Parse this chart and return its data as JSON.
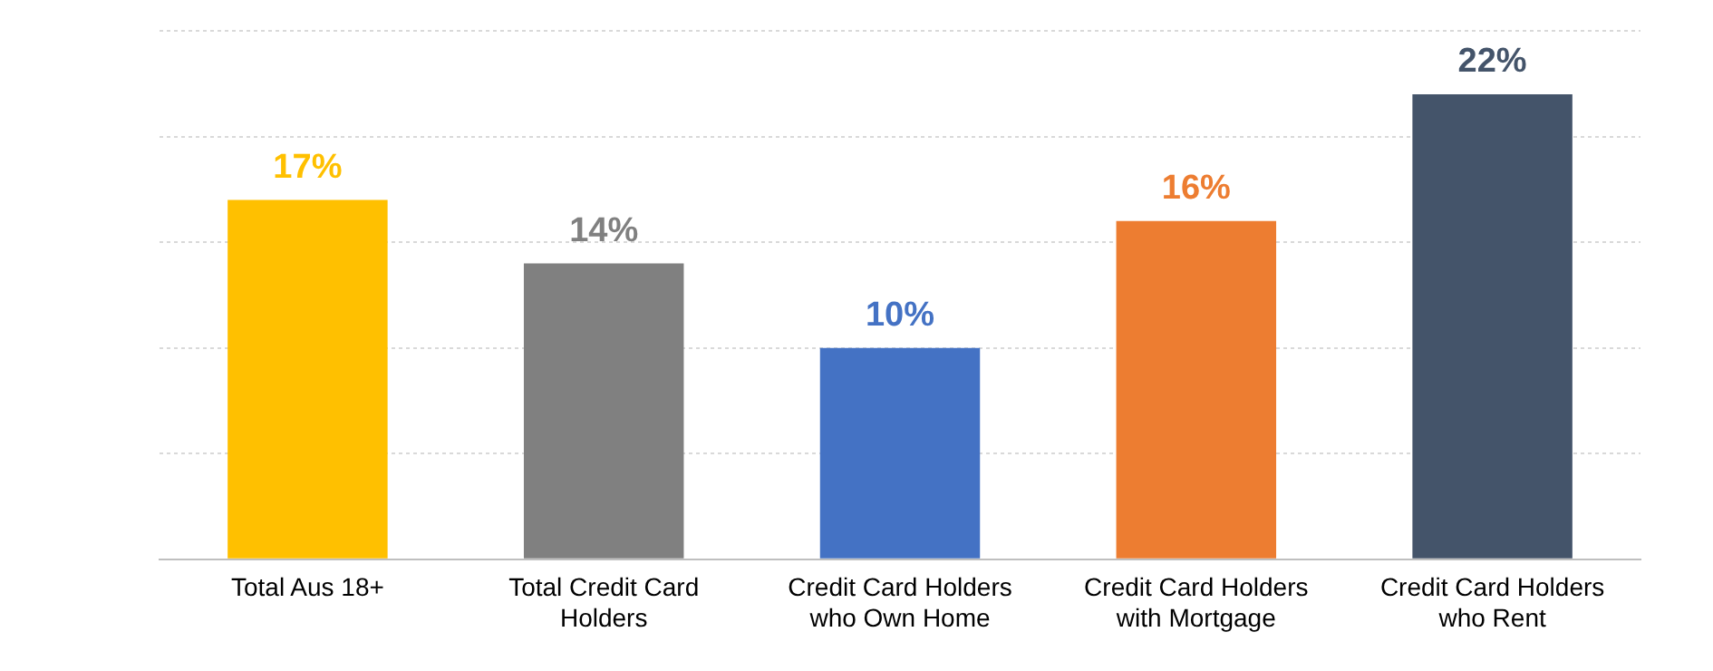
{
  "chart_data": {
    "type": "bar",
    "categories": [
      "Total Aus 18+",
      "Total Credit Card Holders",
      "Credit Card Holders who Own Home",
      "Credit Card Holders with Mortgage",
      "Credit Card Holders who Rent"
    ],
    "values": [
      17,
      14,
      10,
      16,
      22
    ],
    "colors": [
      "#ffc000",
      "#808080",
      "#4472c4",
      "#ed7d31",
      "#44546a"
    ],
    "value_labels": [
      "17%",
      "14%",
      "10%",
      "16%",
      "22%"
    ],
    "ylim": [
      0,
      25
    ],
    "yticks": [
      {
        "value": 0,
        "label": null
      },
      {
        "value": 5,
        "label": null
      },
      {
        "value": 10,
        "label": null
      },
      {
        "value": 15,
        "label": null
      },
      {
        "value": 20,
        "label": null
      },
      {
        "value": 25,
        "label": null
      }
    ],
    "tick_labels": "x",
    "grid": "y"
  }
}
